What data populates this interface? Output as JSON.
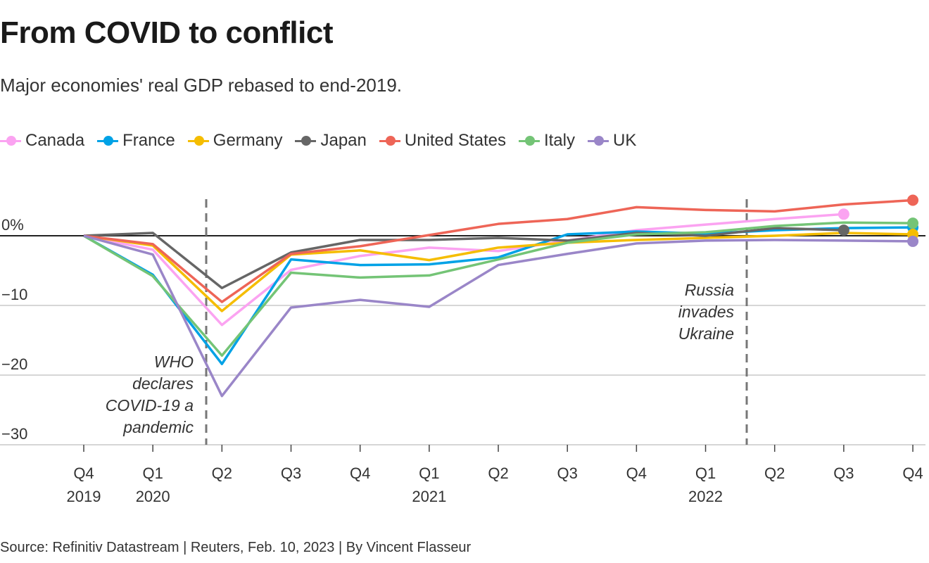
{
  "title": "From COVID to conflict",
  "subtitle": "Major economies' real GDP rebased to end-2019.",
  "source": "Source: Refinitiv Datastream | Reuters, Feb. 10, 2023 | By Vincent Flasseur",
  "chart_data": {
    "type": "line",
    "xlabel": "",
    "ylabel": "",
    "ylim": [
      -30,
      5
    ],
    "grid": true,
    "legend_position": "top-left",
    "x": [
      "Q4 2019",
      "Q1 2020",
      "Q2 2020",
      "Q3 2020",
      "Q4 2020",
      "Q1 2021",
      "Q2 2021",
      "Q3 2021",
      "Q4 2021",
      "Q1 2022",
      "Q2 2022",
      "Q3 2022",
      "Q4 2022"
    ],
    "x_tick_labels": [
      {
        "top": "Q4",
        "bottom": "2019"
      },
      {
        "top": "Q1",
        "bottom": "2020"
      },
      {
        "top": "Q2",
        "bottom": ""
      },
      {
        "top": "Q3",
        "bottom": ""
      },
      {
        "top": "Q4",
        "bottom": ""
      },
      {
        "top": "Q1",
        "bottom": "2021"
      },
      {
        "top": "Q2",
        "bottom": ""
      },
      {
        "top": "Q3",
        "bottom": ""
      },
      {
        "top": "Q4",
        "bottom": ""
      },
      {
        "top": "Q1",
        "bottom": "2022"
      },
      {
        "top": "Q2",
        "bottom": ""
      },
      {
        "top": "Q3",
        "bottom": ""
      },
      {
        "top": "Q4",
        "bottom": ""
      }
    ],
    "y_ticks": [
      {
        "value": 0,
        "label": "0%"
      },
      {
        "value": -10,
        "label": "−10"
      },
      {
        "value": -20,
        "label": "−20"
      },
      {
        "value": -30,
        "label": "−30"
      }
    ],
    "series": [
      {
        "name": "Canada",
        "color": "#fba3f1",
        "values": [
          0,
          -2.0,
          -12.8,
          -4.9,
          -2.9,
          -1.7,
          -2.2,
          -0.7,
          0.8,
          1.6,
          2.4,
          3.1,
          null
        ]
      },
      {
        "name": "France",
        "color": "#00a2e6",
        "values": [
          0,
          -5.6,
          -18.4,
          -3.4,
          -4.2,
          -4.1,
          -3.1,
          0.2,
          0.6,
          0.3,
          0.8,
          1.1,
          1.2
        ]
      },
      {
        "name": "Germany",
        "color": "#f5bd00",
        "values": [
          0,
          -1.4,
          -10.8,
          -2.7,
          -2.1,
          -3.5,
          -1.7,
          -1.0,
          -0.6,
          -0.3,
          0.0,
          0.4,
          0.2
        ]
      },
      {
        "name": "Japan",
        "color": "#666666",
        "values": [
          0,
          0.4,
          -7.5,
          -2.4,
          -0.6,
          -0.6,
          -0.3,
          -0.7,
          0.4,
          0.0,
          1.1,
          0.8,
          null
        ]
      },
      {
        "name": "United States",
        "color": "#ee6557",
        "values": [
          0,
          -1.2,
          -9.5,
          -2.6,
          -1.5,
          0.1,
          1.7,
          2.4,
          4.1,
          3.7,
          3.5,
          4.5,
          5.1
        ]
      },
      {
        "name": "Italy",
        "color": "#74c476",
        "values": [
          0,
          -5.8,
          -17.2,
          -5.3,
          -6.0,
          -5.7,
          -3.4,
          -1.0,
          0.2,
          0.5,
          1.4,
          1.9,
          1.8
        ]
      },
      {
        "name": "UK",
        "color": "#9a86c8",
        "values": [
          0,
          -2.7,
          -23.0,
          -10.3,
          -9.2,
          -10.2,
          -4.2,
          -2.6,
          -1.1,
          -0.7,
          -0.6,
          -0.7,
          -0.8
        ]
      }
    ],
    "annotations": [
      {
        "x_between": [
          "Q1 2020",
          "Q2 2020"
        ],
        "lines": [
          "WHO",
          "declares",
          "COVID-19 a",
          "pandemic"
        ]
      },
      {
        "x_between": [
          "Q1 2022",
          "Q2 2022"
        ],
        "lines": [
          "Russia",
          "invades",
          "Ukraine"
        ]
      }
    ]
  }
}
